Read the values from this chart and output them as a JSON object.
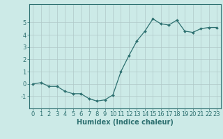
{
  "x": [
    0,
    1,
    2,
    3,
    4,
    5,
    6,
    7,
    8,
    9,
    10,
    11,
    12,
    13,
    14,
    15,
    16,
    17,
    18,
    19,
    20,
    21,
    22,
    23
  ],
  "y": [
    0.0,
    0.1,
    -0.2,
    -0.2,
    -0.6,
    -0.8,
    -0.8,
    -1.2,
    -1.4,
    -1.3,
    -0.9,
    1.0,
    2.3,
    3.5,
    4.3,
    5.3,
    4.9,
    4.8,
    5.2,
    4.3,
    4.2,
    4.5,
    4.6,
    4.6
  ],
  "line_color": "#2d7070",
  "marker": "D",
  "marker_size": 2.0,
  "line_width": 0.9,
  "xlabel": "Humidex (Indice chaleur)",
  "xlim": [
    -0.5,
    23.5
  ],
  "ylim": [
    -2.0,
    6.5
  ],
  "yticks": [
    -1,
    0,
    1,
    2,
    3,
    4,
    5
  ],
  "xticks": [
    0,
    1,
    2,
    3,
    4,
    5,
    6,
    7,
    8,
    9,
    10,
    11,
    12,
    13,
    14,
    15,
    16,
    17,
    18,
    19,
    20,
    21,
    22,
    23
  ],
  "bg_color": "#cceae7",
  "grid_color": "#b0c8c8",
  "tick_color": "#2d7070",
  "label_color": "#2d7070",
  "xlabel_fontsize": 7.0,
  "tick_fontsize": 6.0
}
